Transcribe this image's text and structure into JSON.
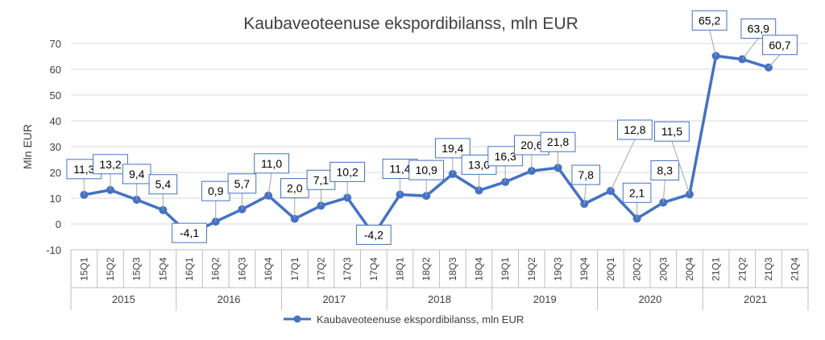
{
  "chart_data": {
    "type": "line",
    "title": "Kaubaveoteenuse ekspordibilanss, mln EUR",
    "ylabel": "Mln EUR",
    "xlabel": "",
    "ylim": [
      -10,
      70
    ],
    "yticks": [
      "-10",
      "0",
      "10",
      "20",
      "30",
      "40",
      "50",
      "60",
      "70"
    ],
    "grid": true,
    "legend_position": "bottom",
    "categories": [
      "15Q1",
      "15Q2",
      "15Q3",
      "15Q4",
      "16Q1",
      "16Q2",
      "16Q3",
      "16Q4",
      "17Q1",
      "17Q2",
      "17Q3",
      "17Q4",
      "18Q1",
      "18Q2",
      "18Q3",
      "18Q4",
      "19Q1",
      "19Q2",
      "19Q3",
      "19Q4",
      "20Q1",
      "20Q2",
      "20Q3",
      "20Q4",
      "21Q1",
      "21Q2",
      "21Q3",
      "21Q4"
    ],
    "years": [
      "2015",
      "2016",
      "2017",
      "2018",
      "2019",
      "2020",
      "2021"
    ],
    "series": [
      {
        "name": "Kaubaveoteenuse ekspordibilanss, mln EUR",
        "color": "#4472C4",
        "values": [
          11.3,
          13.2,
          9.4,
          5.4,
          -4.1,
          0.9,
          5.7,
          11.0,
          2.0,
          7.1,
          10.2,
          -4.2,
          11.4,
          10.9,
          19.4,
          13.0,
          16.3,
          20.6,
          21.8,
          7.8,
          12.8,
          2.1,
          8.3,
          11.5,
          65.2,
          63.9,
          60.7,
          null
        ],
        "labels": [
          "11,3",
          "13,2",
          "9,4",
          "5,4",
          "-4,1",
          "0,9",
          "5,7",
          "11,0",
          "2,0",
          "7,1",
          "10,2",
          "-4,2",
          "11,4",
          "10,9",
          "19,4",
          "13,0",
          "16,3",
          "20,6",
          "21,8",
          "7,8",
          "12,8",
          "2,1",
          "8,3",
          "11,5",
          "65,2",
          "63,9",
          "60,7",
          ""
        ]
      }
    ]
  }
}
